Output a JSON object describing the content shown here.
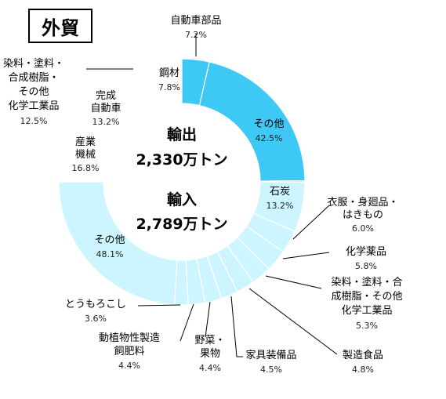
{
  "chart_data": {
    "type": "pie",
    "title": "外貿",
    "style": "donut",
    "colors": {
      "export": "#3ec8f6",
      "import": "#ccf5ff",
      "stroke": "#ffffff",
      "leader": "#000000"
    },
    "export": {
      "title": "輸出",
      "total": "2,330万トン",
      "slices": [
        {
          "name": "自動車部品",
          "value": 7.2,
          "label_lines": [
            "自動車部品"
          ],
          "pct_text": "7.2%"
        },
        {
          "name": "その他",
          "value": 42.5,
          "label_lines": [
            "その他"
          ],
          "pct_text": "42.5%"
        },
        {
          "name": "産業機械",
          "value": 16.8,
          "label_lines": [
            "産業",
            "機械"
          ],
          "pct_text": "16.8%"
        },
        {
          "name": "完成自動車",
          "value": 13.2,
          "label_lines": [
            "完成",
            "自動車"
          ],
          "pct_text": "13.2%"
        },
        {
          "name": "染料・塗料・合成樹脂・その他化学工業品",
          "value": 12.5,
          "label_lines": [
            "染料・塗料・",
            "合成樹脂・",
            "その他",
            "化学工業品"
          ],
          "pct_text": "12.5%"
        },
        {
          "name": "鋼材",
          "value": 7.8,
          "label_lines": [
            "鋼材"
          ],
          "pct_text": "7.8%"
        }
      ]
    },
    "import": {
      "title": "輸入",
      "total": "2,789万トン",
      "slices": [
        {
          "name": "石炭",
          "value": 13.2,
          "label_lines": [
            "石炭"
          ],
          "pct_text": "13.2%"
        },
        {
          "name": "衣服・身廻品・はきもの",
          "value": 6.0,
          "label_lines": [
            "衣服・身廻品・",
            "はきもの"
          ],
          "pct_text": "6.0%"
        },
        {
          "name": "化学薬品",
          "value": 5.8,
          "label_lines": [
            "化学薬品"
          ],
          "pct_text": "5.8%"
        },
        {
          "name": "染料・塗料・合成樹脂・その他化学工業品",
          "value": 5.3,
          "label_lines": [
            "染料・塗料・合",
            "成樹脂・その他",
            "化学工業品"
          ],
          "pct_text": "5.3%"
        },
        {
          "name": "製造食品",
          "value": 4.8,
          "label_lines": [
            "製造食品"
          ],
          "pct_text": "4.8%"
        },
        {
          "name": "家具装備品",
          "value": 4.5,
          "label_lines": [
            "家具装備品"
          ],
          "pct_text": "4.5%"
        },
        {
          "name": "野菜・果物",
          "value": 4.4,
          "label_lines": [
            "野菜・",
            "果物"
          ],
          "pct_text": "4.4%"
        },
        {
          "name": "動植物性製造飼肥料",
          "value": 4.4,
          "label_lines": [
            "動植物性製造",
            "飼肥料"
          ],
          "pct_text": "4.4%"
        },
        {
          "name": "とうもろこし",
          "value": 3.6,
          "label_lines": [
            "とうもろこし"
          ],
          "pct_text": "3.6%"
        },
        {
          "name": "その他",
          "value": 48.1,
          "label_lines": [
            "その他"
          ],
          "pct_text": "48.1%"
        }
      ]
    }
  }
}
